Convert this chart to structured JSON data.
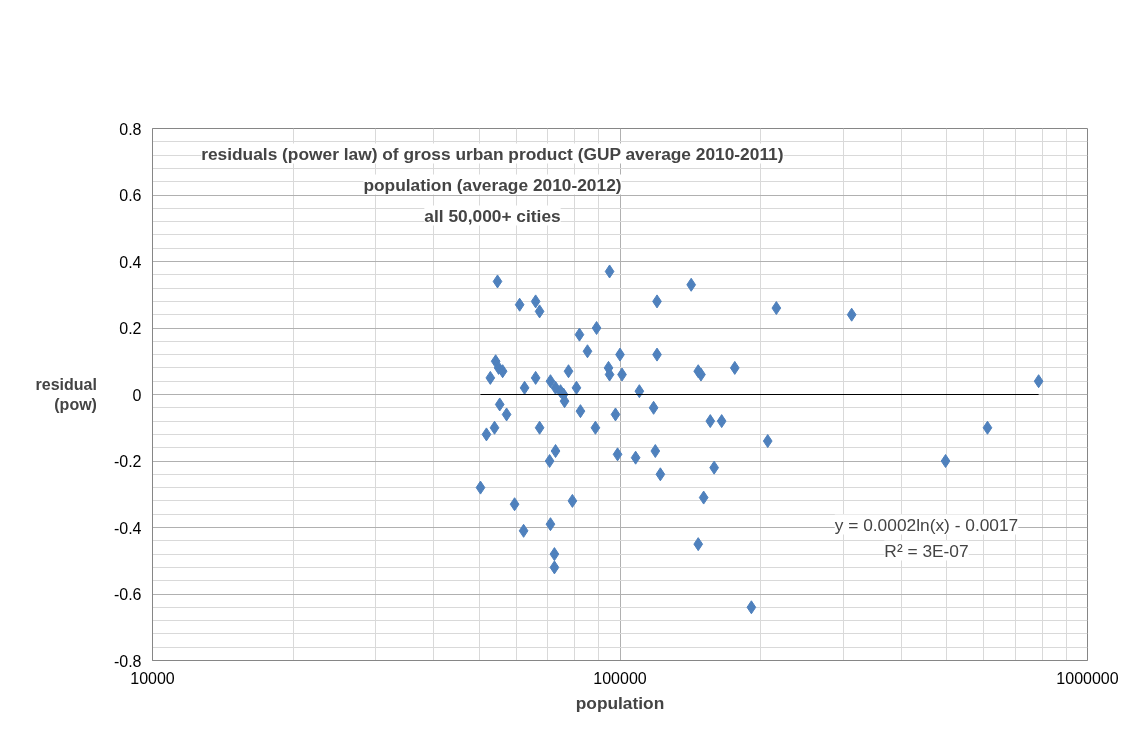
{
  "chart_data": {
    "type": "scatter",
    "title": "residuals (power law) of gross urban product (GUP average 2010-2011)\npopulation (average 2010-2012)\nall 50,000+ cities",
    "xlabel": "population",
    "ylabel": "residual\n(pow)",
    "log": "x",
    "grid": true,
    "xlim": [
      10000,
      1000000
    ],
    "xticks": [
      10000,
      100000,
      1000000
    ],
    "ylim": [
      -0.8,
      0.8
    ],
    "yticks": [
      -0.8,
      -0.6,
      -0.4,
      -0.2,
      0,
      0.2,
      0.4,
      0.6,
      0.8
    ],
    "annotations": [
      "y = 0.0002ln(x) - 0.0017\nR² = 3E-07"
    ],
    "series": [
      {
        "marker": "diamond",
        "color": "#4f81bd",
        "x": [
          54700,
          95000,
          61000,
          66000,
          67300,
          120000,
          81900,
          89100,
          85200,
          100000,
          120000,
          54200,
          55000,
          56100,
          52800,
          66000,
          77600,
          94500,
          95000,
          101000,
          62500,
          71000,
          72800,
          74600,
          75700,
          80700,
          110000,
          76100,
          55300,
          57200,
          82300,
          118000,
          97800,
          53900,
          51800,
          67300,
          88600,
          72800,
          70700,
          98800,
          108000,
          119000,
          122000,
          50300,
          59500,
          79100,
          71000,
          62200,
          72400,
          72400,
          142000,
          216000,
          313000,
          147000,
          149000,
          176000,
          786000,
          156000,
          165000,
          207000,
          497000,
          611000,
          159000,
          151000,
          147000,
          191000
        ],
        "values": [
          0.34,
          0.37,
          0.27,
          0.28,
          0.25,
          0.28,
          0.18,
          0.2,
          0.13,
          0.12,
          0.12,
          0.1,
          0.08,
          0.07,
          0.05,
          0.05,
          0.07,
          0.08,
          0.06,
          0.06,
          0.02,
          0.04,
          0.02,
          0.01,
          0.0,
          0.02,
          0.01,
          -0.02,
          -0.03,
          -0.06,
          -0.05,
          -0.04,
          -0.06,
          -0.1,
          -0.12,
          -0.1,
          -0.1,
          -0.17,
          -0.2,
          -0.18,
          -0.19,
          -0.17,
          -0.24,
          -0.28,
          -0.33,
          -0.32,
          -0.39,
          -0.41,
          -0.48,
          -0.52,
          0.33,
          0.26,
          0.24,
          0.07,
          0.06,
          0.08,
          0.04,
          -0.08,
          -0.08,
          -0.14,
          -0.2,
          -0.1,
          -0.22,
          -0.31,
          -0.45,
          -0.64
        ]
      },
      {
        "type": "line",
        "marker": "none",
        "color": "#000000",
        "x": [
          50300,
          786000
        ],
        "values": [
          0,
          0
        ]
      }
    ]
  }
}
